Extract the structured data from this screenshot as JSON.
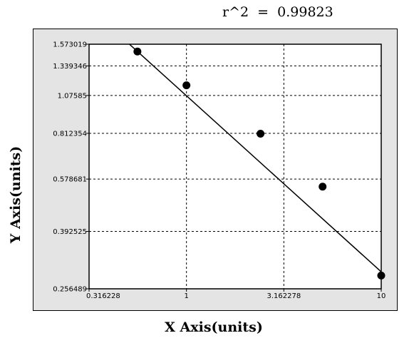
{
  "chart_data": {
    "type": "scatter",
    "title": "r^2  =  0.99823",
    "xlabel": "X Axis(units)",
    "ylabel": "Y Axis(units)",
    "x_scale": "log",
    "y_scale": "log",
    "xlim": [
      0.316228,
      10
    ],
    "ylim": [
      0.256489,
      1.573019
    ],
    "x_ticks": [
      "0.316228",
      "1",
      "3.162278",
      "10"
    ],
    "x_tick_values": [
      0.316228,
      1,
      3.162278,
      10
    ],
    "y_ticks": [
      "1.573019",
      "1.339346",
      "1.07585",
      "0.812354",
      "0.578681",
      "0.392525",
      "0.256489"
    ],
    "y_tick_values": [
      1.573019,
      1.339346,
      1.07585,
      0.812354,
      0.578681,
      0.392525,
      0.256489
    ],
    "grid": true,
    "series": [
      {
        "points": [
          {
            "x": 0.56,
            "y": 1.49
          },
          {
            "x": 1.0,
            "y": 1.16
          },
          {
            "x": 2.4,
            "y": 0.81
          },
          {
            "x": 5.0,
            "y": 0.547
          },
          {
            "x": 10.0,
            "y": 0.283
          }
        ],
        "fit_line": {
          "x": [
            0.5,
            10.5
          ],
          "y": [
            1.59,
            0.283
          ]
        },
        "color": "#000000"
      }
    ],
    "plot_background": "#ffffff",
    "frame_background": "#e4e4e4"
  }
}
